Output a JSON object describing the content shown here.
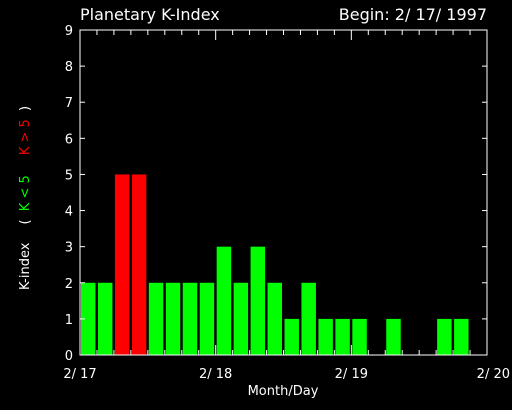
{
  "chart_data": {
    "type": "bar",
    "title": "Planetary K-Index",
    "begin_label": "Begin: 2/ 17/ 1997",
    "xlabel": "Month/Day",
    "ylabel": {
      "main": "K-index",
      "open_paren": "(",
      "green_part": "K < 5",
      "red_part": "K > 5",
      "close_paren": ")"
    },
    "ylim": [
      0,
      9
    ],
    "yticks": [
      "0",
      "1",
      "2",
      "3",
      "4",
      "5",
      "6",
      "7",
      "8",
      "9"
    ],
    "xlim": [
      0,
      24
    ],
    "xticks": [
      {
        "value": 0,
        "label": "2/ 17"
      },
      {
        "value": 8,
        "label": "2/ 18"
      },
      {
        "value": 16,
        "label": "2/ 19"
      },
      {
        "value": 24,
        "label": "2/ 20"
      }
    ],
    "bins_per_day": 8,
    "values": [
      2,
      2,
      5,
      5,
      2,
      2,
      2,
      2,
      3,
      2,
      3,
      2,
      1,
      2,
      1,
      1,
      1,
      0,
      1,
      0,
      0,
      1,
      1,
      0
    ],
    "threshold": 5,
    "colors": {
      "low": "#00ff00",
      "high": "#ff0000",
      "axes": "#ffffff",
      "background": "#000000"
    }
  }
}
